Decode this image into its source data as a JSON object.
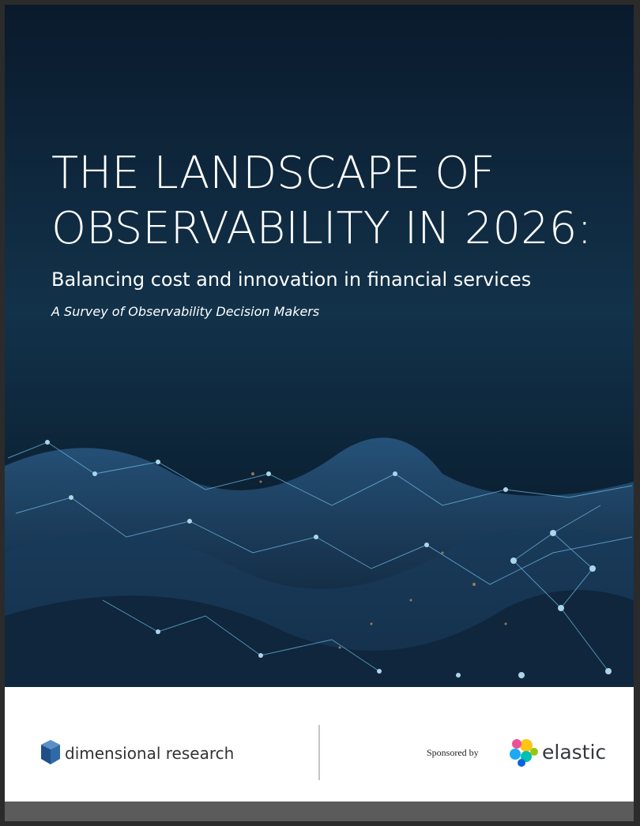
{
  "cover": {
    "title_lines": [
      "THE LANDSCAPE OF",
      "OBSERVABILITY IN 2026:"
    ],
    "subtitle": "Balancing cost and innovation in financial services",
    "tagline": "A Survey of Observability Decision Makers"
  },
  "footer": {
    "publisher": "dimensional research",
    "sponsored_label": "Sponsored by",
    "sponsor": "elastic"
  }
}
